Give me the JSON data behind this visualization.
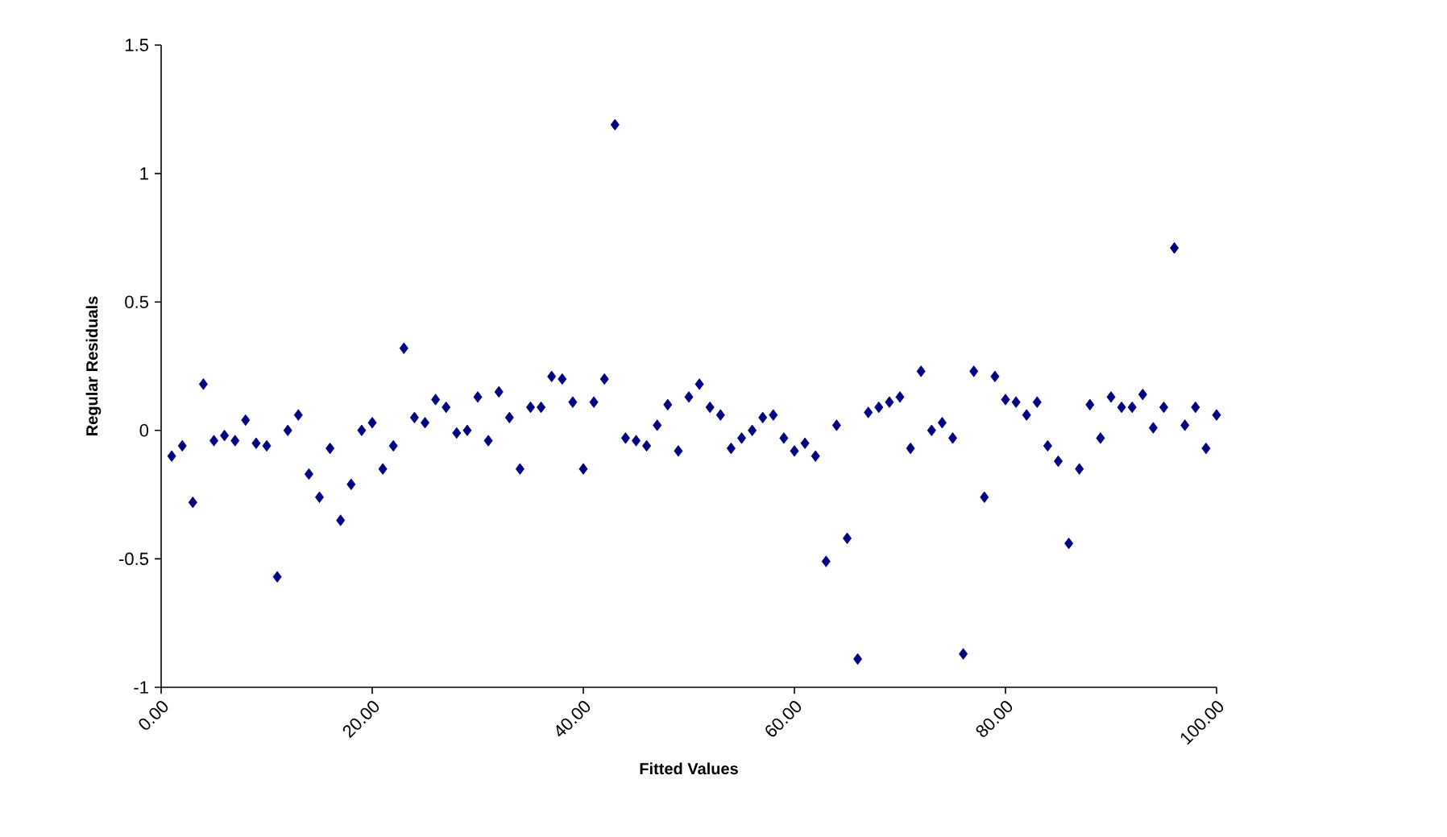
{
  "chart_data": {
    "type": "scatter",
    "xlabel": "Fitted Values",
    "ylabel": "Regular Residuals",
    "x": [
      1,
      2,
      3,
      4,
      5,
      6,
      7,
      8,
      9,
      10,
      11,
      12,
      13,
      14,
      15,
      16,
      17,
      18,
      19,
      20,
      21,
      22,
      23,
      24,
      25,
      26,
      27,
      28,
      29,
      30,
      31,
      32,
      33,
      34,
      35,
      36,
      37,
      38,
      39,
      40,
      41,
      42,
      43,
      44,
      45,
      46,
      47,
      48,
      49,
      50,
      51,
      52,
      53,
      54,
      55,
      56,
      57,
      58,
      59,
      60,
      61,
      62,
      63,
      64,
      65,
      66,
      67,
      68,
      69,
      70,
      71,
      72,
      73,
      74,
      75,
      76,
      77,
      78,
      79,
      80,
      81,
      82,
      83,
      84,
      85,
      86,
      87,
      88,
      89,
      90,
      91,
      92,
      93,
      94,
      95,
      96,
      97,
      98,
      99,
      100
    ],
    "values": [
      -0.1,
      -0.06,
      -0.28,
      0.18,
      -0.04,
      -0.02,
      -0.04,
      0.04,
      -0.05,
      -0.06,
      -0.57,
      0.0,
      0.06,
      -0.17,
      -0.26,
      -0.07,
      -0.35,
      -0.21,
      0.0,
      0.03,
      -0.15,
      -0.06,
      0.32,
      0.05,
      0.03,
      0.12,
      0.09,
      -0.01,
      0.0,
      0.13,
      -0.04,
      0.15,
      0.05,
      -0.15,
      0.09,
      0.09,
      0.21,
      0.2,
      0.11,
      -0.15,
      0.11,
      0.2,
      1.19,
      -0.03,
      -0.04,
      -0.06,
      0.02,
      0.1,
      -0.08,
      0.13,
      0.18,
      0.09,
      0.06,
      -0.07,
      -0.03,
      0.0,
      0.05,
      0.06,
      -0.03,
      -0.08,
      -0.05,
      -0.1,
      -0.51,
      0.02,
      -0.42,
      -0.89,
      0.07,
      0.09,
      0.11,
      0.13,
      -0.07,
      0.23,
      0.0,
      0.03,
      -0.03,
      -0.87,
      0.23,
      -0.26,
      0.21,
      0.12,
      0.11,
      0.06,
      0.11,
      -0.06,
      -0.12,
      -0.44,
      -0.15,
      0.1,
      -0.03,
      0.13,
      0.09,
      0.09,
      0.14,
      0.01,
      0.09,
      0.71,
      0.02,
      0.09,
      -0.07,
      0.06
    ],
    "color": "#000080",
    "marker": "diamond",
    "xlim": [
      0,
      100
    ],
    "ylim": [
      -1,
      1.5
    ],
    "xticks": [
      {
        "value": 0,
        "label": "0.00"
      },
      {
        "value": 20,
        "label": "20.00"
      },
      {
        "value": 40,
        "label": "40.00"
      },
      {
        "value": 60,
        "label": "60.00"
      },
      {
        "value": 80,
        "label": "80.00"
      },
      {
        "value": 100,
        "label": "100.00"
      }
    ],
    "yticks": [
      -1,
      -0.5,
      0,
      0.5,
      1,
      1.5
    ]
  }
}
